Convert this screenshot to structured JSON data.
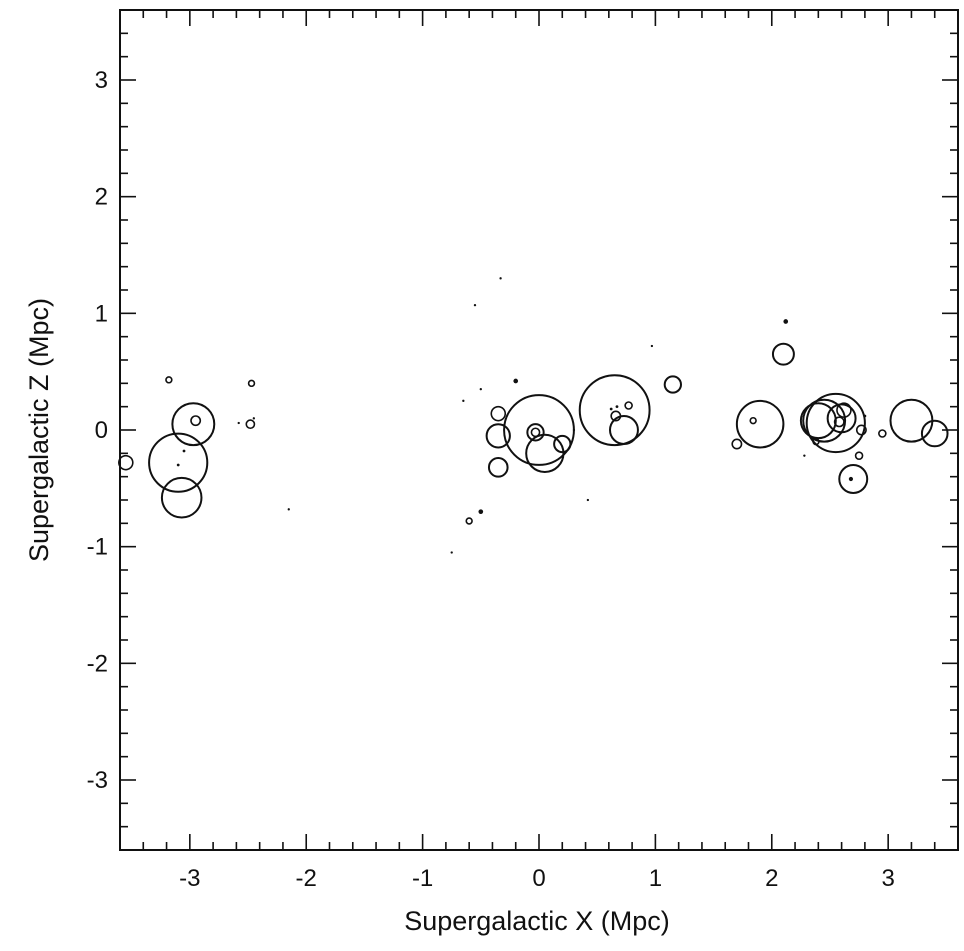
{
  "chart_data": {
    "type": "scatter",
    "title": "",
    "xlabel": "Supergalactic X (Mpc)",
    "ylabel": "Supergalactic Z (Mpc)",
    "xlim": [
      -3.6,
      3.6
    ],
    "ylim": [
      -3.6,
      3.6
    ],
    "xticks": [
      -3,
      -2,
      -1,
      0,
      1,
      2,
      3
    ],
    "yticks": [
      -3,
      -2,
      -1,
      0,
      1,
      2,
      3
    ],
    "xtick_labels": [
      "-3",
      "-2",
      "-1",
      "0",
      "1",
      "2",
      "3"
    ],
    "ytick_labels": [
      "-3",
      "-2",
      "-1",
      "0",
      "1",
      "2",
      "3"
    ],
    "minor_tick_step": 0.2,
    "grid": false,
    "marker": "open circles, size proportional to galaxy size; smallest drawn as dots",
    "points": [
      {
        "x": -3.55,
        "y": -0.28,
        "r": 0.06
      },
      {
        "x": -3.18,
        "y": 0.43,
        "r": 0.025
      },
      {
        "x": -3.1,
        "y": -0.28,
        "r": 0.25
      },
      {
        "x": -3.07,
        "y": -0.58,
        "r": 0.17
      },
      {
        "x": -2.97,
        "y": 0.05,
        "r": 0.18
      },
      {
        "x": -2.95,
        "y": 0.08,
        "r": 0.04
      },
      {
        "x": -3.05,
        "y": -0.18,
        "r": 0.012
      },
      {
        "x": -3.1,
        "y": -0.3,
        "r": 0.012
      },
      {
        "x": -2.47,
        "y": 0.4,
        "r": 0.025
      },
      {
        "x": -2.48,
        "y": 0.05,
        "r": 0.035
      },
      {
        "x": -2.58,
        "y": 0.06,
        "r": 0.01
      },
      {
        "x": -2.45,
        "y": 0.1,
        "r": 0.01
      },
      {
        "x": -2.15,
        "y": -0.68,
        "r": 0.01
      },
      {
        "x": -0.75,
        "y": -1.05,
        "r": 0.01
      },
      {
        "x": -0.6,
        "y": -0.78,
        "r": 0.025
      },
      {
        "x": -0.5,
        "y": -0.7,
        "r": 0.02
      },
      {
        "x": -0.55,
        "y": 1.07,
        "r": 0.01
      },
      {
        "x": -0.33,
        "y": 1.3,
        "r": 0.01
      },
      {
        "x": -0.2,
        "y": 0.42,
        "r": 0.02
      },
      {
        "x": -0.35,
        "y": 0.14,
        "r": 0.06
      },
      {
        "x": -0.35,
        "y": -0.05,
        "r": 0.1
      },
      {
        "x": -0.35,
        "y": -0.32,
        "r": 0.08
      },
      {
        "x": -0.65,
        "y": 0.25,
        "r": 0.01
      },
      {
        "x": -0.5,
        "y": 0.35,
        "r": 0.01
      },
      {
        "x": 0.0,
        "y": 0.0,
        "r": 0.3
      },
      {
        "x": -0.03,
        "y": -0.02,
        "r": 0.07
      },
      {
        "x": -0.03,
        "y": -0.02,
        "r": 0.035
      },
      {
        "x": 0.05,
        "y": -0.2,
        "r": 0.16
      },
      {
        "x": 0.2,
        "y": -0.12,
        "r": 0.07
      },
      {
        "x": 0.42,
        "y": -0.6,
        "r": 0.01
      },
      {
        "x": 0.3,
        "y": 0.0,
        "r": 0.01
      },
      {
        "x": 0.65,
        "y": 0.17,
        "r": 0.3
      },
      {
        "x": 0.73,
        "y": 0.0,
        "r": 0.12
      },
      {
        "x": 0.66,
        "y": 0.12,
        "r": 0.04
      },
      {
        "x": 0.77,
        "y": 0.21,
        "r": 0.03
      },
      {
        "x": 0.62,
        "y": 0.18,
        "r": 0.012
      },
      {
        "x": 0.67,
        "y": 0.2,
        "r": 0.012
      },
      {
        "x": 0.97,
        "y": 0.72,
        "r": 0.01
      },
      {
        "x": 1.15,
        "y": 0.39,
        "r": 0.07
      },
      {
        "x": 1.7,
        "y": -0.12,
        "r": 0.04
      },
      {
        "x": 1.9,
        "y": 0.05,
        "r": 0.2
      },
      {
        "x": 1.84,
        "y": 0.08,
        "r": 0.025
      },
      {
        "x": 2.12,
        "y": 0.93,
        "r": 0.02
      },
      {
        "x": 2.1,
        "y": 0.65,
        "r": 0.09
      },
      {
        "x": 2.28,
        "y": -0.22,
        "r": 0.01
      },
      {
        "x": 2.4,
        "y": 0.08,
        "r": 0.15
      },
      {
        "x": 2.45,
        "y": 0.08,
        "r": 0.18
      },
      {
        "x": 2.55,
        "y": 0.06,
        "r": 0.25
      },
      {
        "x": 2.6,
        "y": 0.1,
        "r": 0.12
      },
      {
        "x": 2.62,
        "y": 0.17,
        "r": 0.06
      },
      {
        "x": 2.58,
        "y": 0.07,
        "r": 0.04
      },
      {
        "x": 2.38,
        "y": -0.1,
        "r": 0.025
      },
      {
        "x": 2.7,
        "y": -0.42,
        "r": 0.12
      },
      {
        "x": 2.68,
        "y": -0.42,
        "r": 0.018
      },
      {
        "x": 2.75,
        "y": -0.22,
        "r": 0.03
      },
      {
        "x": 2.77,
        "y": 0.0,
        "r": 0.04
      },
      {
        "x": 2.8,
        "y": 0.12,
        "r": 0.012
      },
      {
        "x": 2.95,
        "y": -0.03,
        "r": 0.03
      },
      {
        "x": 3.2,
        "y": 0.08,
        "r": 0.18
      },
      {
        "x": 3.4,
        "y": -0.03,
        "r": 0.11
      }
    ]
  }
}
